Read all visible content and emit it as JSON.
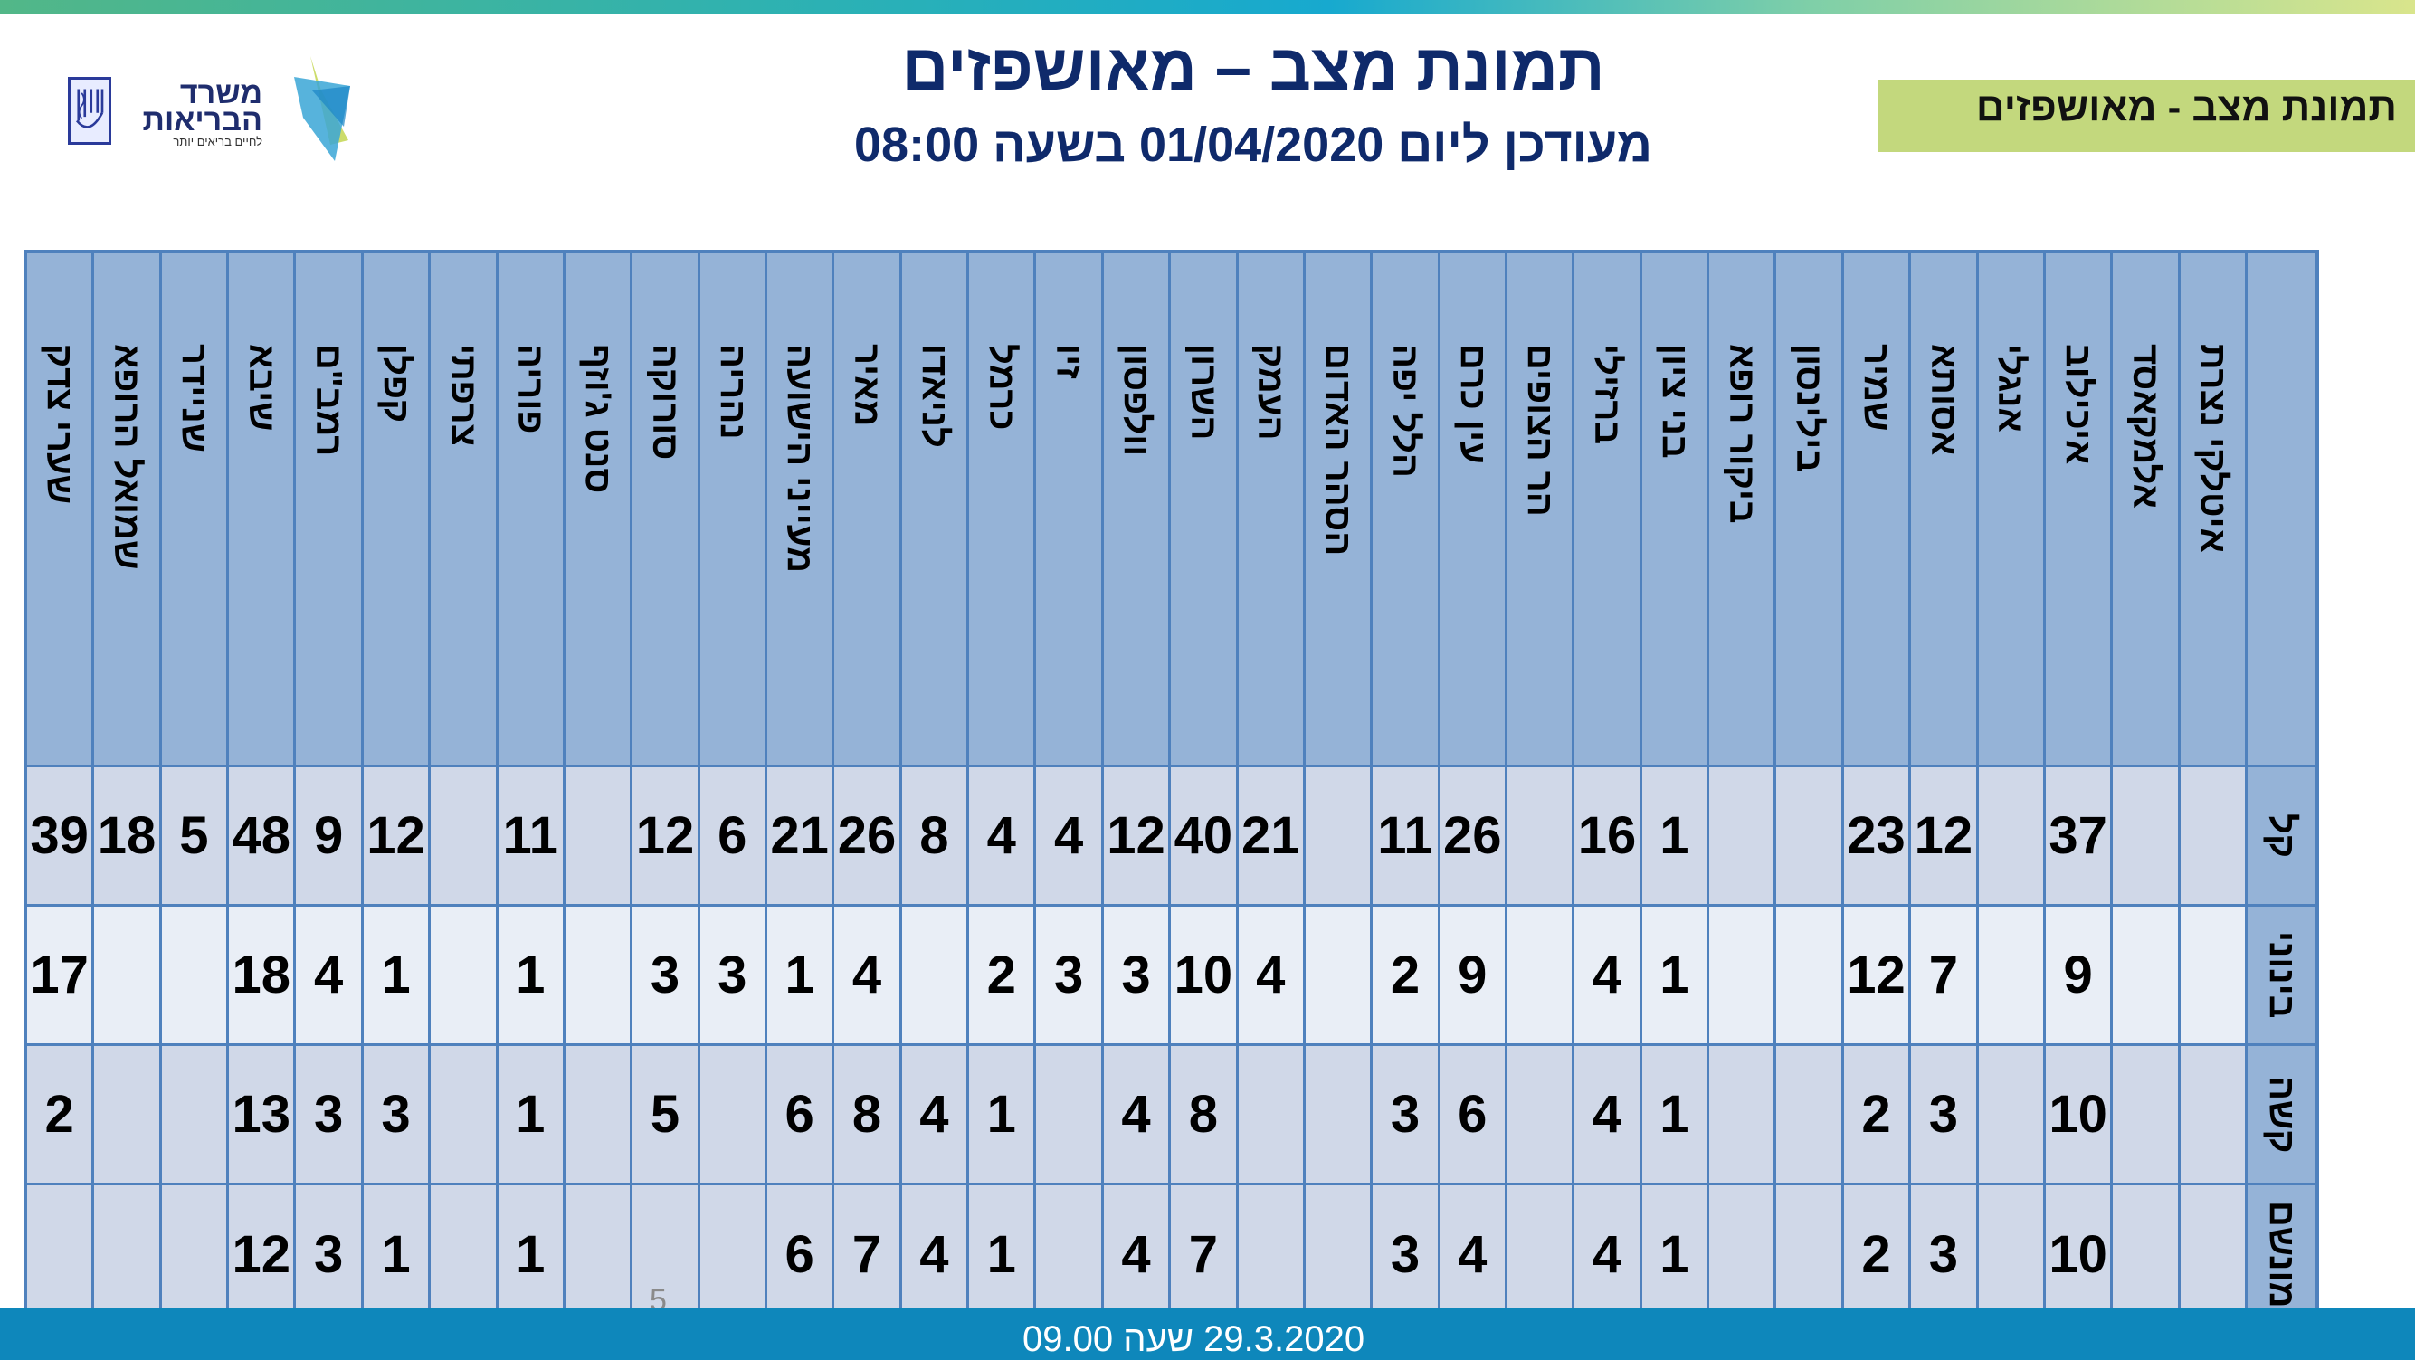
{
  "header": {
    "title": "תמונת מצב – מאושפזים",
    "subtitle": "מעודכן ליום 01/04/2020 בשעה 08:00",
    "section_label": "תמונת מצב - מאושפזים"
  },
  "logo": {
    "line1": "משרד",
    "line2": "הבריאות",
    "tagline": "לחיים בריאים יותר",
    "icons": [
      "menorah-emblem-icon",
      "star-logo-icon"
    ]
  },
  "colors": {
    "header_cell": "#95b3d7",
    "data_cell": "#d0d8e8",
    "data_cell_light": "#e9eef6",
    "grid_line": "#4f81bd",
    "title": "#0f2a6b",
    "section_label_bg": "#c3d87d",
    "footer_bar": "#0e87bb"
  },
  "table": {
    "columns": [
      "שערי צדק",
      "שמואל הרופא",
      "שניידר",
      "שיבא",
      "רמב\"ם",
      "קפלן",
      "צרפתי",
      "פוריה",
      "סנט ג'וזף",
      "סורוקה",
      "נהריה",
      "מעייני הישועה",
      "מאיר",
      "לניאדו",
      "כרמל",
      "זיו",
      "וולפסון",
      "השרון",
      "העמק",
      "הסהר האדום",
      "הלל יפה",
      "עין כרם",
      "הר הצופים",
      "ברזילי",
      "בני ציון",
      "ביקור רופא",
      "בילינסון",
      "שמיר",
      "אסותא",
      "אנגלי",
      "איכילוב",
      "אלמקאסד",
      "איטלקי נצרת"
    ],
    "rows": [
      {
        "label": "קל",
        "values": [
          "39",
          "18",
          "5",
          "48",
          "9",
          "12",
          "",
          "11",
          "",
          "12",
          "6",
          "21",
          "26",
          "8",
          "4",
          "4",
          "12",
          "40",
          "21",
          "",
          "11",
          "26",
          "",
          "16",
          "1",
          "",
          "",
          "23",
          "12",
          "",
          "37",
          "",
          ""
        ]
      },
      {
        "label": "בינוני",
        "values": [
          "17",
          "",
          "",
          "18",
          "4",
          "1",
          "",
          "1",
          "",
          "3",
          "3",
          "1",
          "4",
          "",
          "2",
          "3",
          "3",
          "10",
          "4",
          "",
          "2",
          "9",
          "",
          "4",
          "1",
          "",
          "",
          "12",
          "7",
          "",
          "9",
          "",
          ""
        ]
      },
      {
        "label": "קשה",
        "values": [
          "2",
          "",
          "",
          "13",
          "3",
          "3",
          "",
          "1",
          "",
          "5",
          "",
          "6",
          "8",
          "4",
          "1",
          "",
          "4",
          "8",
          "",
          "",
          "3",
          "6",
          "",
          "4",
          "1",
          "",
          "",
          "2",
          "3",
          "",
          "10",
          "",
          ""
        ]
      },
      {
        "label": "מונשם",
        "values": [
          "",
          "",
          "",
          "12",
          "3",
          "1",
          "",
          "1",
          "",
          "",
          "",
          "6",
          "7",
          "4",
          "1",
          "",
          "4",
          "7",
          "",
          "",
          "3",
          "4",
          "",
          "4",
          "1",
          "",
          "",
          "2",
          "3",
          "",
          "10",
          "",
          ""
        ]
      }
    ]
  },
  "footer": {
    "page_number": "5",
    "date_text": "29.3.2020   שעה 09.00"
  }
}
